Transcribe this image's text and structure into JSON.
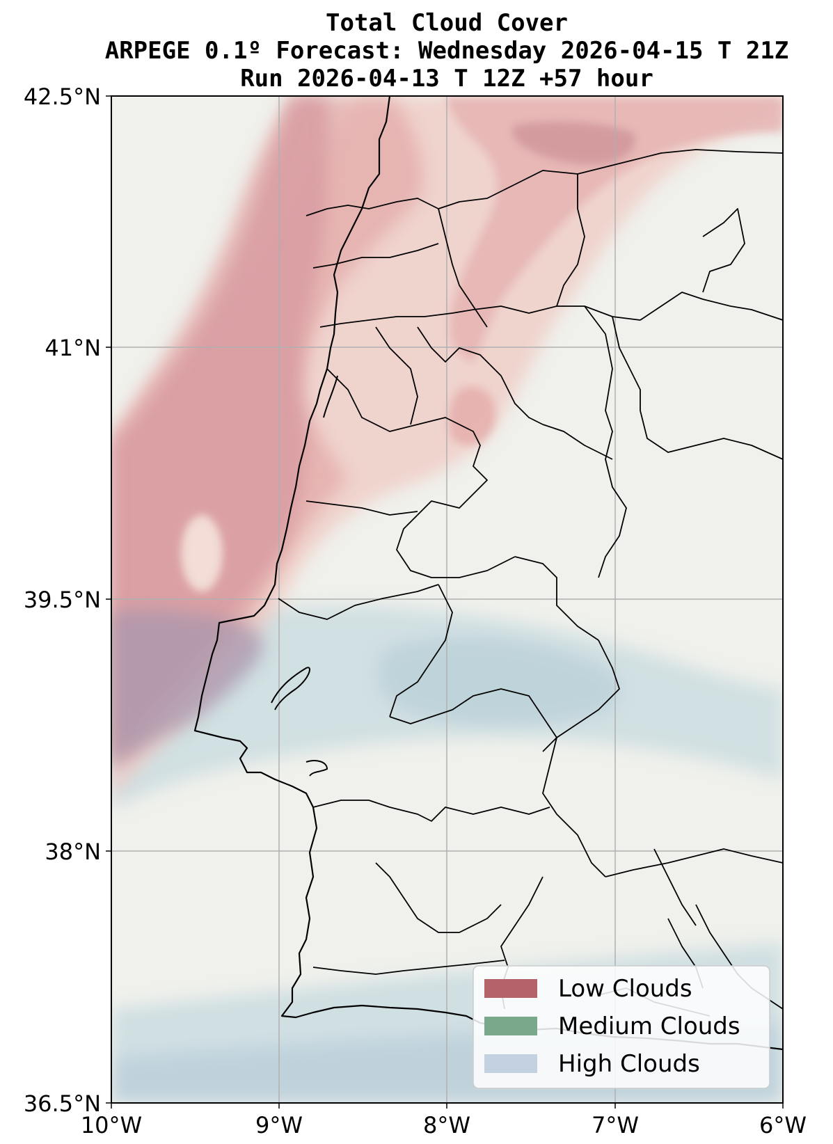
{
  "title": {
    "line1": "Total Cloud Cover",
    "line2": "ARPEGE 0.1º Forecast: Wednesday 2026-04-15 T 21Z",
    "line3": "Run 2026-04-13 T 12Z +57 hour"
  },
  "map": {
    "lon_range": [
      -10,
      -6
    ],
    "lat_range": [
      36.5,
      42.5
    ],
    "gridlines": true,
    "x_ticks": [
      {
        "value": -10,
        "label": "10°W"
      },
      {
        "value": -9,
        "label": "9°W"
      },
      {
        "value": -8,
        "label": "8°W"
      },
      {
        "value": -7,
        "label": "7°W"
      },
      {
        "value": -6,
        "label": "6°W"
      }
    ],
    "y_ticks": [
      {
        "value": 42.5,
        "label": "42.5°N"
      },
      {
        "value": 41,
        "label": "41°N"
      },
      {
        "value": 39.5,
        "label": "39.5°N"
      },
      {
        "value": 38,
        "label": "38°N"
      },
      {
        "value": 36.5,
        "label": "36.5°N"
      }
    ],
    "land_color": "#f0f1ec"
  },
  "legend": {
    "placement": "lower-right",
    "items": [
      {
        "label": "Low Clouds",
        "color": "#b5636b"
      },
      {
        "label": "Medium Clouds",
        "color": "#7aa88a"
      },
      {
        "label": "High Clouds",
        "color": "#c3d1e0"
      }
    ]
  }
}
